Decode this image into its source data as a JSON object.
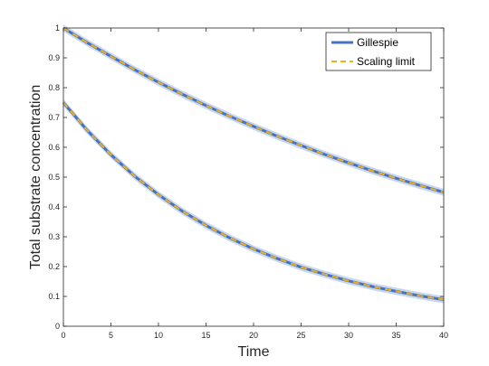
{
  "chart_data": {
    "type": "line",
    "title": "",
    "xlabel": "Time",
    "ylabel": "Total substrate concentration",
    "xlim": [
      0,
      40
    ],
    "ylim": [
      0,
      1
    ],
    "xticks": [
      0,
      5,
      10,
      15,
      20,
      25,
      30,
      35,
      40
    ],
    "xtick_labels": [
      "0",
      "5",
      "10",
      "15",
      "20",
      "25",
      "30",
      "35",
      "40"
    ],
    "yticks": [
      0,
      0.1,
      0.2,
      0.3,
      0.4,
      0.5,
      0.6,
      0.7,
      0.8,
      0.9,
      1
    ],
    "ytick_labels": [
      "0",
      "0.1",
      "0.2",
      "0.3",
      "0.4",
      "0.5",
      "0.6",
      "0.7",
      "0.8",
      "0.9",
      "1"
    ],
    "grid": false,
    "legend_position": "top-right",
    "legend": [
      "Gillespie",
      "Scaling limit"
    ],
    "x": [
      0,
      2.5,
      5,
      7.5,
      10,
      12.5,
      15,
      17.5,
      20,
      22.5,
      25,
      27.5,
      30,
      32.5,
      35,
      37.5,
      40
    ],
    "series": [
      {
        "name": "Gillespie",
        "style": "solid",
        "color": "#4472c4",
        "band_color": "#c9d8ef",
        "curves": [
          [
            1.0,
            0.951,
            0.905,
            0.86,
            0.818,
            0.778,
            0.74,
            0.704,
            0.67,
            0.637,
            0.606,
            0.576,
            0.548,
            0.521,
            0.496,
            0.472,
            0.449
          ],
          [
            0.75,
            0.657,
            0.575,
            0.503,
            0.441,
            0.386,
            0.338,
            0.296,
            0.259,
            0.227,
            0.198,
            0.174,
            0.152,
            0.133,
            0.117,
            0.102,
            0.089
          ]
        ]
      },
      {
        "name": "Scaling limit",
        "style": "dashed",
        "color": "#edb120",
        "curves": [
          [
            1.0,
            0.951,
            0.905,
            0.86,
            0.818,
            0.778,
            0.74,
            0.704,
            0.67,
            0.637,
            0.606,
            0.576,
            0.548,
            0.521,
            0.496,
            0.472,
            0.449
          ],
          [
            0.75,
            0.657,
            0.575,
            0.503,
            0.441,
            0.386,
            0.338,
            0.296,
            0.259,
            0.227,
            0.198,
            0.174,
            0.152,
            0.133,
            0.117,
            0.102,
            0.089
          ]
        ]
      }
    ],
    "band_halfwidth": 0.012
  }
}
